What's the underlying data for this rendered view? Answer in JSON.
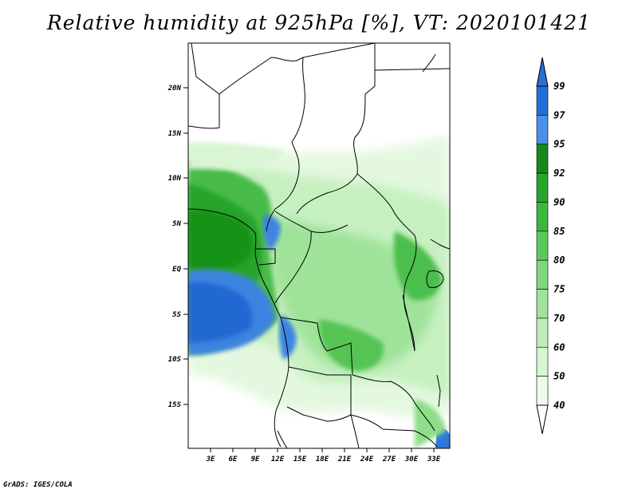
{
  "title": "Relative humidity at 925hPa [%], VT: 2020101421",
  "credit": "GrADS: IGES/COLA",
  "map": {
    "lat_ticks": [
      "20N",
      "15N",
      "10N",
      "5N",
      "EQ",
      "5S",
      "10S",
      "15S"
    ],
    "lon_ticks": [
      "3E",
      "6E",
      "9E",
      "12E",
      "15E",
      "18E",
      "21E",
      "24E",
      "27E",
      "30E",
      "33E"
    ]
  },
  "colorbar": {
    "labels": [
      "99",
      "97",
      "95",
      "92",
      "90",
      "85",
      "80",
      "75",
      "70",
      "60",
      "50",
      "40"
    ],
    "colors": [
      "#2a6fcf",
      "#1f6fd6",
      "#4a90e8",
      "#13891a",
      "#25a52c",
      "#3cb83f",
      "#5cca5a",
      "#7ed77a",
      "#9fe39a",
      "#bdedb9",
      "#d6f6d2",
      "#eefbeb"
    ]
  },
  "colors": {
    "land_boundary": "#000000",
    "background": "#ffffff"
  }
}
